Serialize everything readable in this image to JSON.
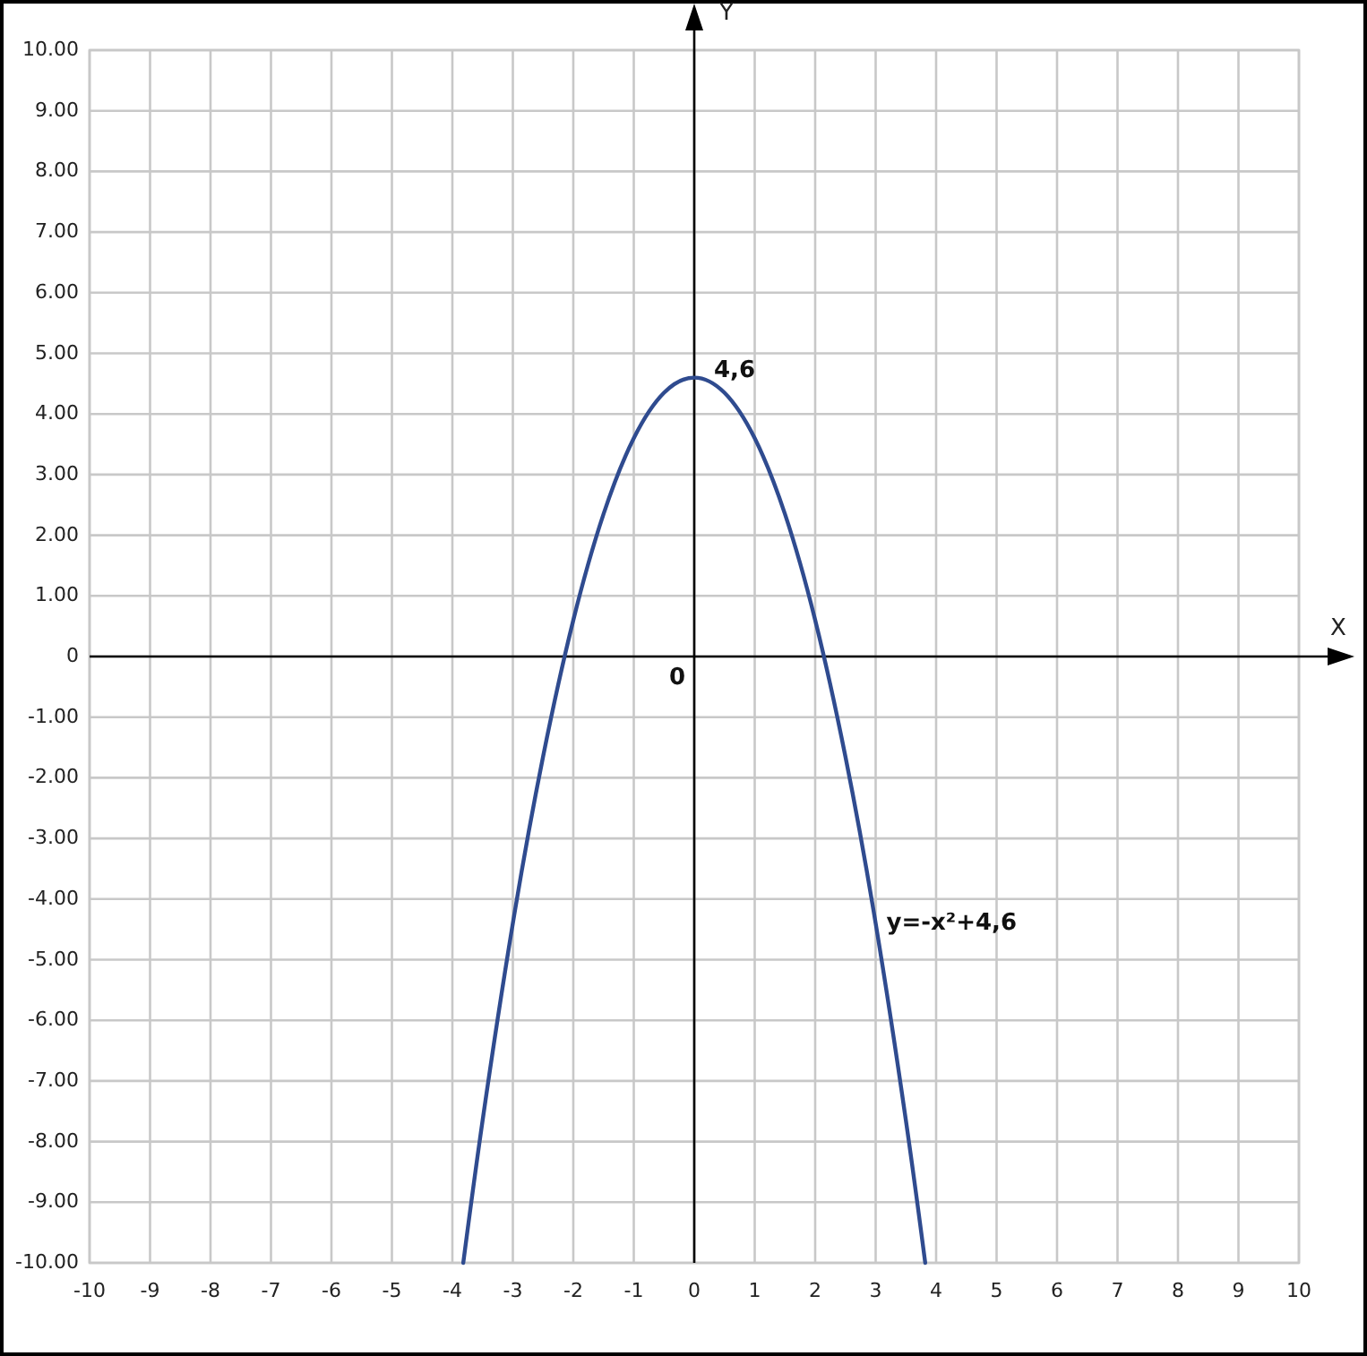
{
  "chart_data": {
    "type": "line",
    "xlabel": "X",
    "ylabel": "Y",
    "xlim": [
      -10,
      10
    ],
    "ylim": [
      -10,
      10
    ],
    "xticks": [
      -10,
      -9,
      -8,
      -7,
      -6,
      -5,
      -4,
      -3,
      -2,
      -1,
      0,
      1,
      2,
      3,
      4,
      5,
      6,
      7,
      8,
      9,
      10
    ],
    "yticks": [
      {
        "value": -10,
        "label": "-10.00"
      },
      {
        "value": -9,
        "label": "-9.00"
      },
      {
        "value": -8,
        "label": "-8.00"
      },
      {
        "value": -7,
        "label": "-7.00"
      },
      {
        "value": -6,
        "label": "-6.00"
      },
      {
        "value": -5,
        "label": "-5.00"
      },
      {
        "value": -4,
        "label": "-4.00"
      },
      {
        "value": -3,
        "label": "-3.00"
      },
      {
        "value": -2,
        "label": "-2.00"
      },
      {
        "value": -1,
        "label": "-1.00"
      },
      0,
      {
        "value": 1,
        "label": "1.00"
      },
      {
        "value": 2,
        "label": "2.00"
      },
      {
        "value": 3,
        "label": "3.00"
      },
      {
        "value": 4,
        "label": "4.00"
      },
      {
        "value": 5,
        "label": "5.00"
      },
      {
        "value": 6,
        "label": "6.00"
      },
      {
        "value": 7,
        "label": "7.00"
      },
      {
        "value": 8,
        "label": "8.00"
      },
      {
        "value": 9,
        "label": "9.00"
      },
      {
        "value": 10,
        "label": "10.00"
      }
    ],
    "grid": true,
    "series": [
      {
        "name": "y=-x²+4,6",
        "color": "#2f4b8f",
        "x": [
          -3.82,
          -3.5,
          -3,
          -2.5,
          -2,
          -1.5,
          -1,
          -0.5,
          0,
          0.5,
          1,
          1.5,
          2,
          2.5,
          3,
          3.5,
          3.82
        ],
        "values": [
          -10,
          -7.65,
          -4.4,
          -1.65,
          0.6,
          2.35,
          3.6,
          4.35,
          4.6,
          4.35,
          3.6,
          2.35,
          0.6,
          -1.65,
          -4.4,
          -7.65,
          -10
        ]
      }
    ],
    "annotations": [
      {
        "text": "4,6",
        "x": 0,
        "y": 4.6
      },
      "0"
    ]
  }
}
